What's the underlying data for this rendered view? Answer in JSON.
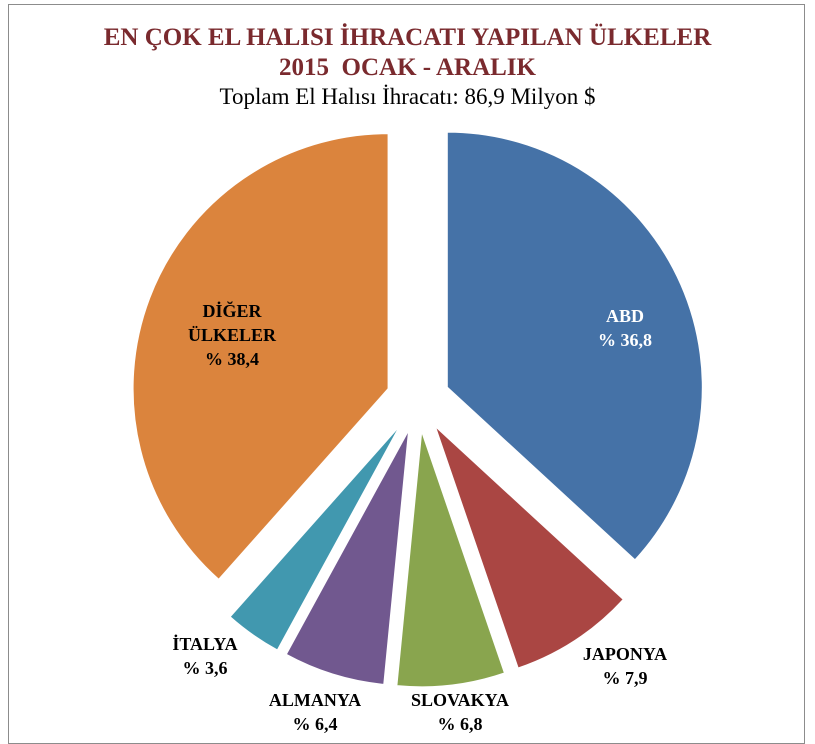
{
  "chart_data": {
    "type": "pie",
    "title": "EN ÇOK EL HALISI İHRACATI YAPILAN ÜLKELER",
    "subtitle": "2015  OCAK - ARALIK",
    "annotation": "Toplam El Halısı İhracatı: 86,9 Milyon $",
    "categories": [
      "ABD",
      "JAPONYA",
      "SLOVAKYA",
      "ALMANYA",
      "İTALYA",
      "DİĞER ÜLKELER"
    ],
    "values": [
      36.8,
      7.9,
      6.8,
      6.4,
      3.6,
      38.4
    ],
    "value_labels": [
      "% 36,8",
      "% 7,9",
      "% 6,8",
      "% 6,4",
      "% 3,6",
      "% 38,4"
    ],
    "colors": [
      "#4572a7",
      "#aa4643",
      "#89a54e",
      "#71588f",
      "#4198af",
      "#db843d"
    ]
  }
}
